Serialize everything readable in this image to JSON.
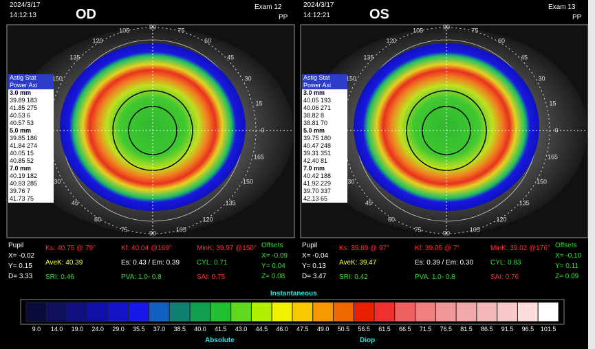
{
  "panels": [
    {
      "date": "2024/3/17",
      "time": "14:12:13",
      "eye": "OD",
      "exam": "Exam 12",
      "mode": "PP",
      "astig": [
        "Astig Stat",
        "Power Axi"
      ],
      "zones": [
        {
          "label": "3.0 mm",
          "rows": [
            "39.89 183",
            "41.85 275",
            "40.53 6",
            "40.57 53"
          ]
        },
        {
          "label": "5.0 mm",
          "rows": [
            "39.85 186",
            "41.84 274",
            "40.05 15",
            "40.85 52"
          ]
        },
        {
          "label": "7.0 mm",
          "rows": [
            "40.19 182",
            "40.93 285",
            "39.76 7",
            "41.73 75"
          ]
        }
      ],
      "pupil": [
        "Pupil",
        "X= -0.02",
        "Y= 0.15",
        "D= 3.33"
      ],
      "stats": [
        [
          "Ks: 40.75 @ 79°",
          "Kf: 40.04 @169°",
          "MinK: 39.97 @150°"
        ],
        [
          "AveK: 40.39",
          "Es: 0.43 / Em: 0.39",
          "CYL: 0.71"
        ],
        [
          "SRI: 0.46",
          "PVA: 1.0- 0.8",
          "SAI: 0.75"
        ]
      ],
      "offsets": [
        "Offsets",
        "X= -0.09",
        "Y= 0.04",
        "Z= 0.08"
      ]
    },
    {
      "date": "2024/3/17",
      "time": "14:12:21",
      "eye": "OS",
      "exam": "Exam 13",
      "mode": "PP",
      "astig": [
        "Astig Stat",
        "Power Axi"
      ],
      "zones": [
        {
          "label": "3.0 mm",
          "rows": [
            "40.05 193",
            "40.06 271",
            "38.82 8",
            "38.81 70"
          ]
        },
        {
          "label": "5.0 mm",
          "rows": [
            "39.75 180",
            "40.47 248",
            "39.31 351",
            "42.40 81"
          ]
        },
        {
          "label": "7.0 mm",
          "rows": [
            "40.42 188",
            "41.92 229",
            "39.70 337",
            "42.13 65"
          ]
        }
      ],
      "pupil": [
        "Pupil",
        "X= -0.04",
        "Y= 0.13",
        "D= 3.47"
      ],
      "stats": [
        [
          "Ks: 39.89 @ 97°",
          "Kf: 39.05 @ 7°",
          "MinK: 39.02 @176°"
        ],
        [
          "AveK: 39.47",
          "Es: 0.39 / Em: 0.30",
          "CYL: 0.83"
        ],
        [
          "SRI: 0.42",
          "PVA: 1.0- 0.8",
          "SAI: 0.76"
        ]
      ],
      "offsets": [
        "Offsets",
        "X= -0.10",
        "Y= 0.11",
        "Z= 0.09"
      ]
    }
  ],
  "angles": [
    "0",
    "15",
    "30",
    "45",
    "60",
    "75",
    "90",
    "105",
    "120",
    "135",
    "150",
    "165"
  ],
  "scale": {
    "title": "Instantaneous",
    "left": "Absolute",
    "right": "Diop",
    "labels": [
      "9.0",
      "14.0",
      "19.0",
      "24.0",
      "29.0",
      "35.5",
      "37.0",
      "38.5",
      "40.0",
      "41.5",
      "43.0",
      "44.5",
      "46.0",
      "47.5",
      "49.0",
      "50.5",
      "56.5",
      "61.5",
      "66.5",
      "71.5",
      "76.5",
      "81.5",
      "86.5",
      "91.5",
      "96.5",
      "101.5"
    ],
    "colors": [
      "#0a0a3c",
      "#10105a",
      "#101080",
      "#1010a8",
      "#1414c8",
      "#1818e8",
      "#1060c0",
      "#108070",
      "#10a050",
      "#20c030",
      "#60d820",
      "#b0f000",
      "#f0f000",
      "#f8c800",
      "#f89800",
      "#f06800",
      "#e82000",
      "#f03030",
      "#f06060",
      "#f08080",
      "#f09898",
      "#f0a8a8",
      "#f4b8b8",
      "#f8c8c8",
      "#fcdcdc",
      "#ffffff"
    ]
  }
}
